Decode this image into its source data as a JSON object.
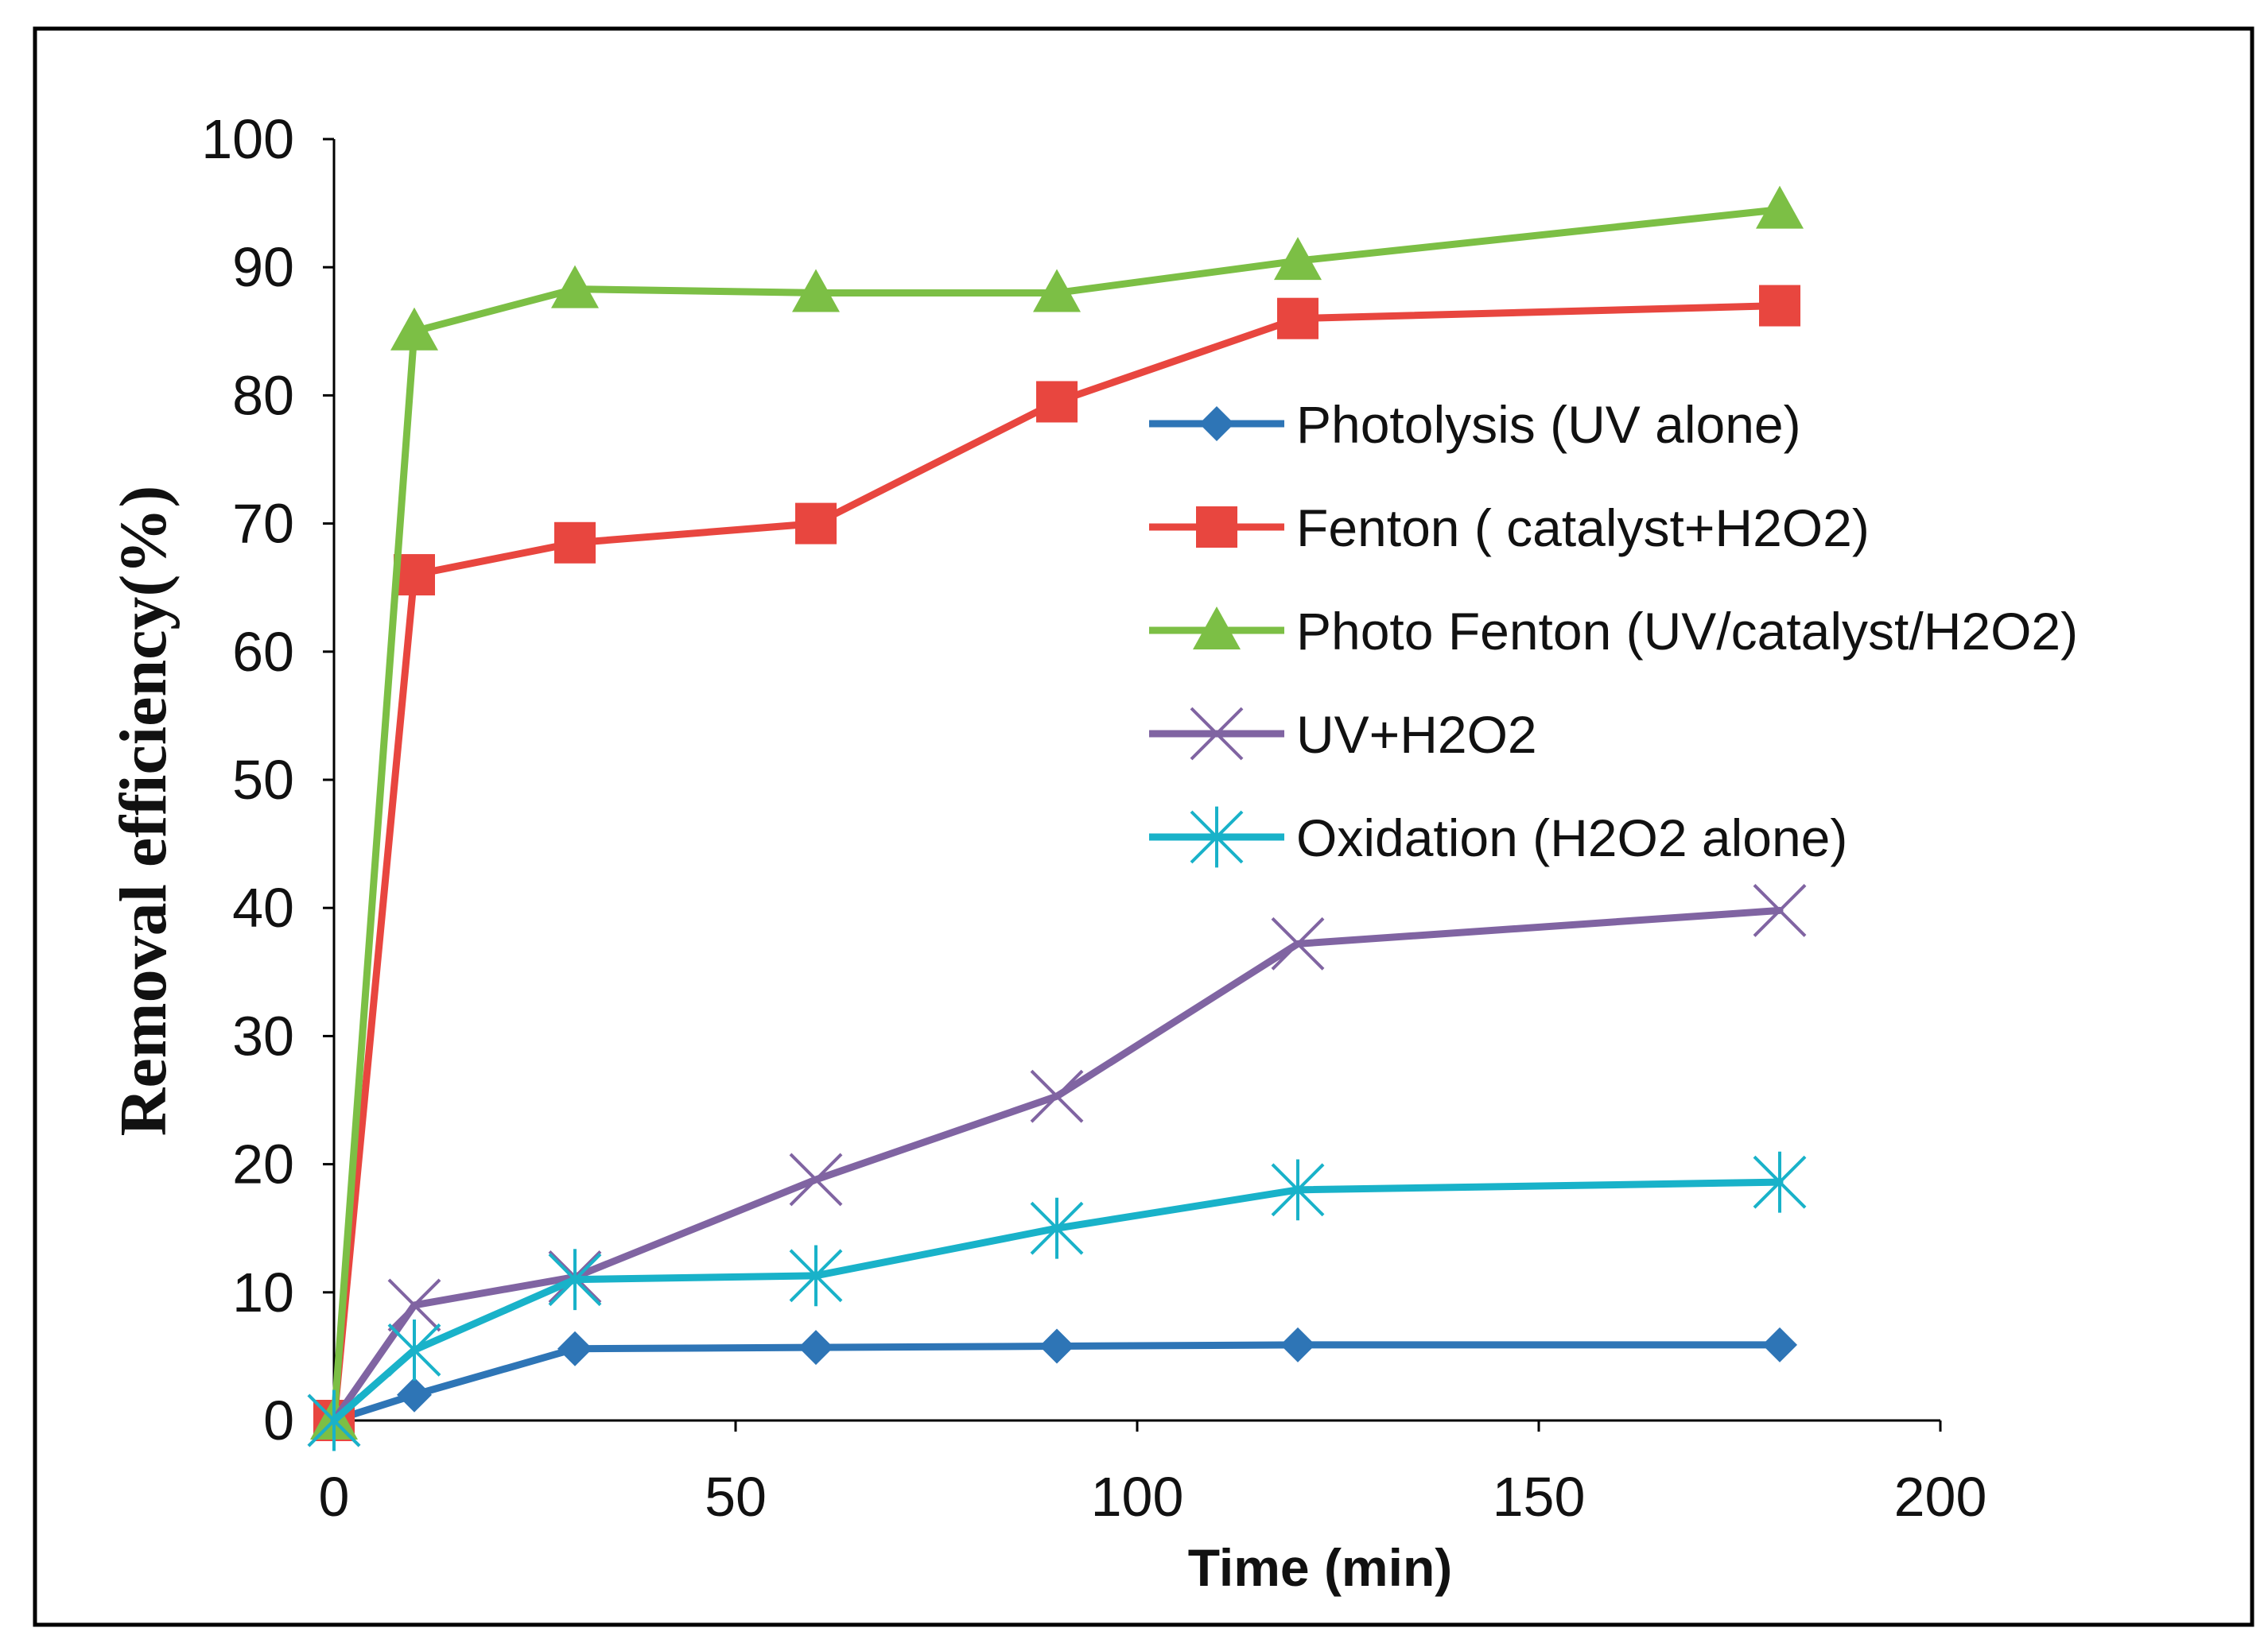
{
  "chart_data": {
    "type": "line",
    "title": "",
    "xlabel": "Time (min)",
    "ylabel": "Removal efficiency(%)",
    "xlim": [
      0,
      200
    ],
    "ylim": [
      0,
      100
    ],
    "xticks": [
      0,
      50,
      100,
      150,
      200
    ],
    "yticks": [
      0,
      10,
      20,
      30,
      40,
      50,
      60,
      70,
      80,
      90,
      100
    ],
    "grid": false,
    "legend_position": "right-center",
    "series": [
      {
        "name": "Photolysis (UV alone)",
        "color": "#2E75B6",
        "marker": "diamond",
        "x": [
          0,
          10,
          30,
          60,
          90,
          120,
          180
        ],
        "y": [
          0,
          2,
          5.6,
          5.7,
          5.8,
          5.9,
          5.9
        ]
      },
      {
        "name": "Fenton ( catalyst+H2O2)",
        "color": "#E8463F",
        "marker": "square",
        "x": [
          0,
          10,
          30,
          60,
          90,
          120,
          180
        ],
        "y": [
          0,
          66,
          68.5,
          70,
          79.5,
          86,
          87
        ]
      },
      {
        "name": "Photo Fenton (UV/catalyst/H2O2)",
        "color": "#7CBF45",
        "marker": "triangle",
        "x": [
          0,
          10,
          30,
          60,
          90,
          120,
          180
        ],
        "y": [
          0,
          85,
          88.3,
          88,
          88,
          90.5,
          94.5
        ]
      },
      {
        "name": "UV+H2O2",
        "color": "#8064A2",
        "marker": "x",
        "x": [
          0,
          10,
          30,
          60,
          90,
          120,
          180
        ],
        "y": [
          0,
          9,
          11.2,
          18.8,
          25.3,
          37.2,
          39.8
        ]
      },
      {
        "name": "Oxidation (H2O2 alone)",
        "color": "#19B2C9",
        "marker": "star",
        "x": [
          0,
          10,
          30,
          60,
          90,
          120,
          180
        ],
        "y": [
          0,
          5.5,
          11,
          11.3,
          15,
          18,
          18.6
        ]
      }
    ]
  }
}
